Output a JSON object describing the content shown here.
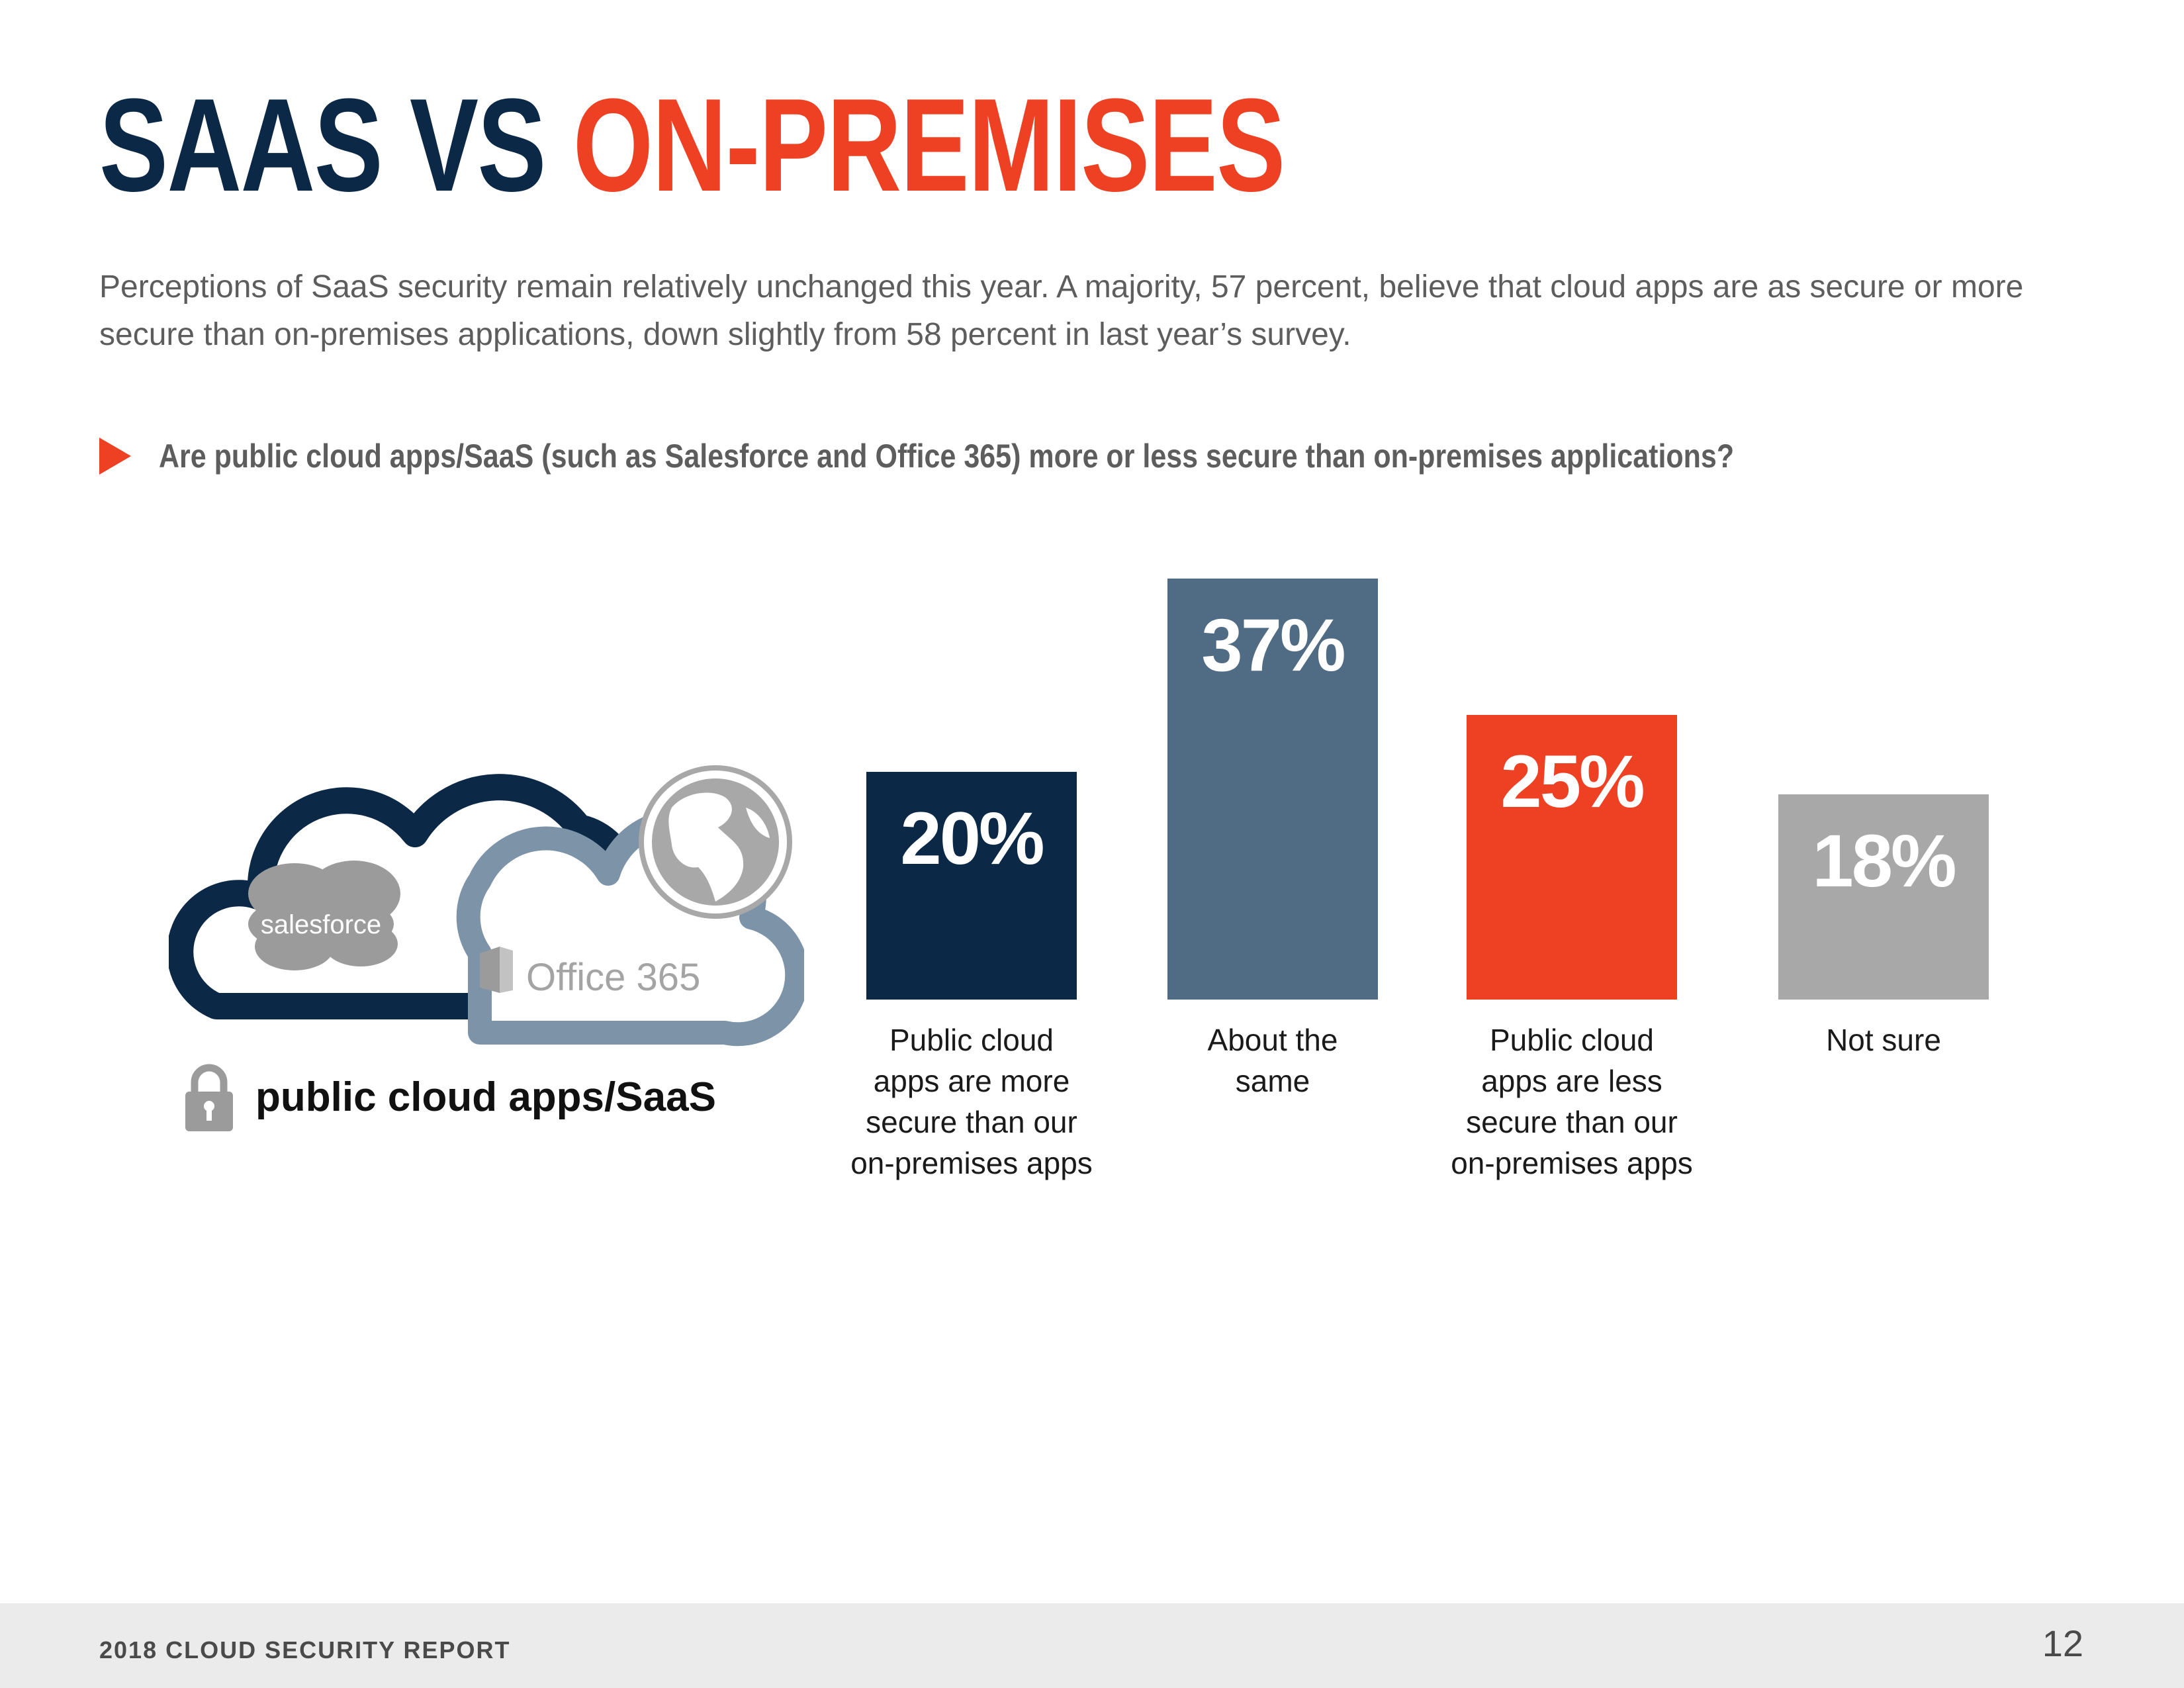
{
  "header": {
    "title_part1": "SAAS VS",
    "title_part2": "ON-PREMISES",
    "title_color_dark": "#0b2846",
    "title_color_accent": "#ee4124"
  },
  "intro": {
    "text": "Perceptions of SaaS security remain relatively unchanged this year. A majority, 57 percent, believe that cloud apps are as secure or more secure than on-premises applications, down slightly from 58 percent in last year’s survey."
  },
  "question": {
    "text": "Are public cloud apps/SaaS (such as Salesforce and Office 365) more or less secure than on-premises applications?"
  },
  "illustration": {
    "label": "public cloud apps/SaaS",
    "salesforce_logo": "salesforce",
    "office_logo": "Office 365",
    "icons": [
      "cloud-icon",
      "globe-icon",
      "lock-icon"
    ]
  },
  "chart_data": {
    "type": "bar",
    "categories": [
      "Public cloud apps are more secure than our on-premises apps",
      "About the same",
      "Public cloud apps are less secure than our on-premises apps",
      "Not sure"
    ],
    "label_lines": [
      [
        "Public cloud",
        "apps are more",
        "secure than our",
        "on-premises apps"
      ],
      [
        "About the",
        "same"
      ],
      [
        "Public cloud",
        "apps are less",
        "secure than our",
        "on-premises apps"
      ],
      [
        "Not sure"
      ]
    ],
    "values": [
      20,
      37,
      25,
      18
    ],
    "value_labels": [
      "20%",
      "37%",
      "25%",
      "18%"
    ],
    "colors": [
      "#0b2846",
      "#506b84",
      "#ee4124",
      "#a8a8a8"
    ],
    "unit": "%",
    "ylim": [
      0,
      40
    ],
    "grid": false,
    "axes_visible": false
  },
  "footer": {
    "report_name": "2018 CLOUD SECURITY REPORT",
    "page_number": "12"
  }
}
